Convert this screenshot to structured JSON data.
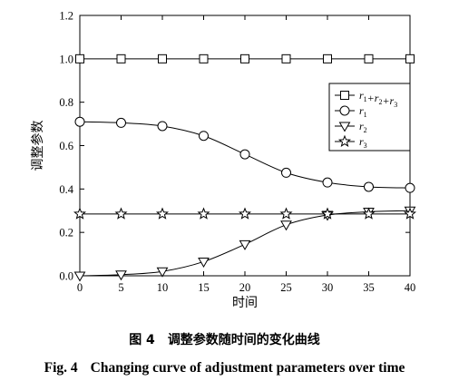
{
  "chart_data": {
    "type": "line",
    "xlabel": "时间",
    "ylabel": "调整参数",
    "xlim": [
      0,
      40
    ],
    "ylim": [
      0,
      1.2
    ],
    "x_ticks": [
      0,
      5,
      10,
      15,
      20,
      25,
      30,
      35,
      40
    ],
    "y_ticks": [
      0.0,
      0.2,
      0.4,
      0.6,
      0.8,
      1.0,
      1.2
    ],
    "x_tick_labels": [
      "0",
      "5",
      "10",
      "15",
      "20",
      "25",
      "30",
      "35",
      "40"
    ],
    "y_tick_labels": [
      "0.0",
      "0.2",
      "0.4",
      "0.6",
      "0.8",
      "1.0",
      "1.2"
    ],
    "legend_position": "right",
    "grid": false,
    "x": [
      0,
      5,
      10,
      15,
      20,
      25,
      30,
      35,
      40
    ],
    "series": [
      {
        "name_parts": [
          {
            "t": "r",
            "s": "1"
          },
          {
            "t": "+r",
            "s": "2"
          },
          {
            "t": "+r",
            "s": "3"
          }
        ],
        "marker": "square",
        "values": [
          1.0,
          1.0,
          1.0,
          1.0,
          1.0,
          1.0,
          1.0,
          1.0,
          1.0
        ]
      },
      {
        "name_parts": [
          {
            "t": "r",
            "s": "1"
          }
        ],
        "marker": "circle",
        "values": [
          0.71,
          0.705,
          0.69,
          0.645,
          0.56,
          0.475,
          0.43,
          0.41,
          0.405
        ]
      },
      {
        "name_parts": [
          {
            "t": "r",
            "s": "2"
          }
        ],
        "marker": "triangle-down",
        "values": [
          0.0,
          0.005,
          0.02,
          0.065,
          0.145,
          0.235,
          0.28,
          0.295,
          0.3
        ]
      },
      {
        "name_parts": [
          {
            "t": "r",
            "s": "3"
          }
        ],
        "marker": "star",
        "values": [
          0.285,
          0.285,
          0.285,
          0.285,
          0.285,
          0.285,
          0.285,
          0.285,
          0.285
        ]
      }
    ]
  },
  "caption": {
    "cn_label": "图 4",
    "cn_text": "调整参数随时间的变化曲线",
    "en_label": "Fig. 4",
    "en_text": "Changing curve of adjustment parameters over time"
  }
}
